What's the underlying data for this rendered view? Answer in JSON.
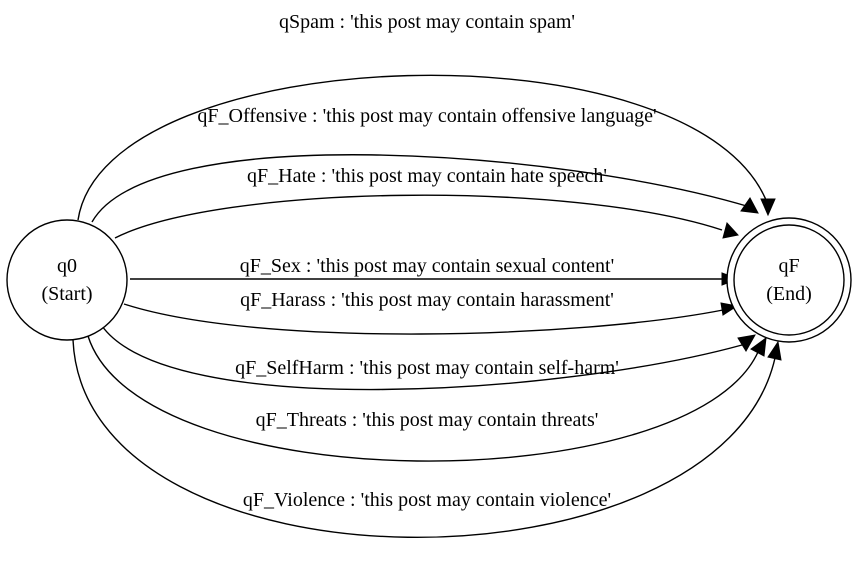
{
  "states": {
    "start": {
      "name": "q0",
      "label": "(Start)"
    },
    "end": {
      "name": "qF",
      "label": "(End)"
    }
  },
  "transitions": [
    {
      "target": "qSpam",
      "output": "'this post may contain spam'",
      "text": "qSpam : 'this post may contain spam'"
    },
    {
      "target": "qF_Offensive",
      "output": "'this post may contain offensive language'",
      "text": "qF_Offensive : 'this post may contain offensive language'"
    },
    {
      "target": "qF_Hate",
      "output": "'this post may contain hate speech'",
      "text": "qF_Hate : 'this post may contain hate speech'"
    },
    {
      "target": "qF_Sex",
      "output": "'this post may contain sexual content'",
      "text": "qF_Sex : 'this post may contain sexual content'"
    },
    {
      "target": "qF_Harass",
      "output": "'this post may contain harassment'",
      "text": "qF_Harass : 'this post may contain harassment'"
    },
    {
      "target": "qF_SelfHarm",
      "output": "'this post may contain self-harm'",
      "text": "qF_SelfHarm : 'this post may contain self-harm'"
    },
    {
      "target": "qF_Threats",
      "output": "'this post may contain threats'",
      "text": "qF_Threats : 'this post may contain threats'"
    },
    {
      "target": "qF_Violence",
      "output": "'this post may contain violence'",
      "text": "qF_Violence : 'this post may contain violence'"
    }
  ]
}
